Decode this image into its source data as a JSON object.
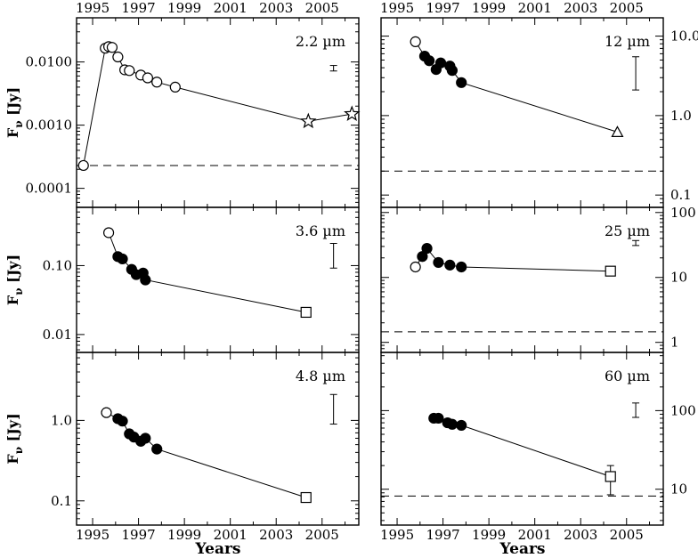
{
  "figure": {
    "xlabel": "Years",
    "ylabel": "F",
    "ylabel_sub": "ν",
    "ylabel_unit": "[Jy]",
    "x_ticklabels": [
      "1995",
      "1997",
      "1999",
      "2001",
      "2003",
      "2005"
    ]
  },
  "chart_data": [
    {
      "type": "scatter",
      "panel": "top-left",
      "label": "2.2 µm",
      "xlim": [
        1994.3,
        2006.6
      ],
      "yscale": "log",
      "ylim": [
        5e-05,
        0.05
      ],
      "yticklabels": [
        "0.0001",
        "0.0010",
        "0.0100"
      ],
      "ytick_values": [
        0.0001,
        0.001,
        0.01
      ],
      "ytick_side": "left",
      "baseline": 0.00023,
      "errorbar": {
        "x": 2005.5,
        "low": 0.0072,
        "high": 0.0088
      },
      "series": [
        {
          "marker": "open-circle",
          "x": [
            1994.6,
            1995.55,
            1995.7,
            1995.85,
            1996.1,
            1996.4,
            1996.6,
            1997.1,
            1997.4,
            1997.8,
            1998.6
          ],
          "y": [
            0.00023,
            0.0165,
            0.0175,
            0.017,
            0.012,
            0.0075,
            0.0073,
            0.0062,
            0.0056,
            0.0048,
            0.004
          ]
        },
        {
          "marker": "open-star",
          "x": [
            2004.4,
            2006.3
          ],
          "y": [
            0.00115,
            0.0015
          ]
        }
      ]
    },
    {
      "type": "scatter",
      "panel": "top-right",
      "label": "12 µm",
      "xlim": [
        1994.3,
        2006.6
      ],
      "yscale": "log",
      "ylim": [
        0.07,
        17
      ],
      "yticklabels": [
        "0.1",
        "1.0",
        "10.0"
      ],
      "ytick_values": [
        0.1,
        1,
        10
      ],
      "ytick_side": "right",
      "baseline": 0.2,
      "errorbar": {
        "x": 2005.4,
        "low": 2.1,
        "high": 5.5
      },
      "series": [
        {
          "marker": "open-circle",
          "x": [
            1995.8
          ],
          "y": [
            8.5
          ]
        },
        {
          "marker": "filled-circle",
          "x": [
            1996.2,
            1996.4,
            1996.7,
            1996.9,
            1997.3,
            1997.4,
            1997.8
          ],
          "y": [
            5.6,
            4.9,
            3.8,
            4.6,
            4.2,
            3.7,
            2.6
          ]
        },
        {
          "marker": "open-triangle",
          "x": [
            2004.6
          ],
          "y": [
            0.62
          ]
        }
      ]
    },
    {
      "type": "scatter",
      "panel": "middle-left",
      "label": "3.6 µm",
      "xlim": [
        1994.3,
        2006.6
      ],
      "yscale": "log",
      "ylim": [
        0.0055,
        0.7
      ],
      "yticklabels": [
        "0.01",
        "0.10"
      ],
      "ytick_values": [
        0.01,
        0.1
      ],
      "ytick_side": "left",
      "baseline": null,
      "errorbar": {
        "x": 2005.5,
        "low": 0.092,
        "high": 0.21
      },
      "series": [
        {
          "marker": "open-circle",
          "x": [
            1995.7
          ],
          "y": [
            0.3
          ]
        },
        {
          "marker": "filled-circle",
          "x": [
            1996.1,
            1996.3,
            1996.7,
            1996.9,
            1997.2,
            1997.3
          ],
          "y": [
            0.135,
            0.125,
            0.088,
            0.074,
            0.078,
            0.062
          ]
        },
        {
          "marker": "open-square",
          "x": [
            2004.3
          ],
          "y": [
            0.021
          ]
        }
      ]
    },
    {
      "type": "scatter",
      "panel": "middle-right",
      "label": "25 µm",
      "xlim": [
        1994.3,
        2006.6
      ],
      "yscale": "log",
      "ylim": [
        0.7,
        120
      ],
      "yticklabels": [
        "1",
        "10",
        "100"
      ],
      "ytick_values": [
        1,
        10,
        100
      ],
      "ytick_side": "right",
      "baseline": 1.45,
      "errorbar": {
        "x": 2005.4,
        "low": 31,
        "high": 37
      },
      "series": [
        {
          "marker": "open-circle",
          "x": [
            1995.8
          ],
          "y": [
            14.5
          ]
        },
        {
          "marker": "filled-circle",
          "x": [
            1996.1,
            1996.3,
            1996.8,
            1997.3,
            1997.8
          ],
          "y": [
            21,
            28,
            17,
            15.5,
            14.5
          ]
        },
        {
          "marker": "open-square",
          "x": [
            2004.3
          ],
          "y": [
            12.5
          ]
        }
      ]
    },
    {
      "type": "scatter",
      "panel": "bottom-left",
      "label": "4.8 µm",
      "xlim": [
        1994.3,
        2006.6
      ],
      "yscale": "log",
      "ylim": [
        0.05,
        7
      ],
      "yticklabels": [
        "0.1",
        "1.0"
      ],
      "ytick_values": [
        0.1,
        1
      ],
      "ytick_side": "left",
      "baseline": null,
      "errorbar": {
        "x": 2005.5,
        "low": 0.9,
        "high": 2.1
      },
      "series": [
        {
          "marker": "open-circle",
          "x": [
            1995.6
          ],
          "y": [
            1.25
          ]
        },
        {
          "marker": "filled-circle",
          "x": [
            1996.1,
            1996.3,
            1996.6,
            1996.8,
            1997.1,
            1997.3,
            1997.8
          ],
          "y": [
            1.05,
            0.98,
            0.68,
            0.62,
            0.55,
            0.6,
            0.44
          ]
        },
        {
          "marker": "open-square",
          "x": [
            2004.3
          ],
          "y": [
            0.11
          ]
        }
      ]
    },
    {
      "type": "scatter",
      "panel": "bottom-right",
      "label": "60 µm",
      "xlim": [
        1994.3,
        2006.6
      ],
      "yscale": "log",
      "ylim": [
        3.5,
        550
      ],
      "yticklabels": [
        "10",
        "100"
      ],
      "ytick_values": [
        10,
        100
      ],
      "ytick_side": "right",
      "baseline": 8.2,
      "errorbar": {
        "x": 2005.4,
        "low": 82,
        "high": 125
      },
      "series": [
        {
          "marker": "filled-circle",
          "x": [
            1996.6,
            1996.8,
            1997.2,
            1997.4,
            1997.8
          ],
          "y": [
            80,
            80,
            70,
            67,
            65
          ]
        },
        {
          "marker": "open-square",
          "x": [
            2004.3
          ],
          "y": [
            14.5
          ],
          "err_low": 8.5,
          "err_high": 20
        }
      ]
    }
  ]
}
